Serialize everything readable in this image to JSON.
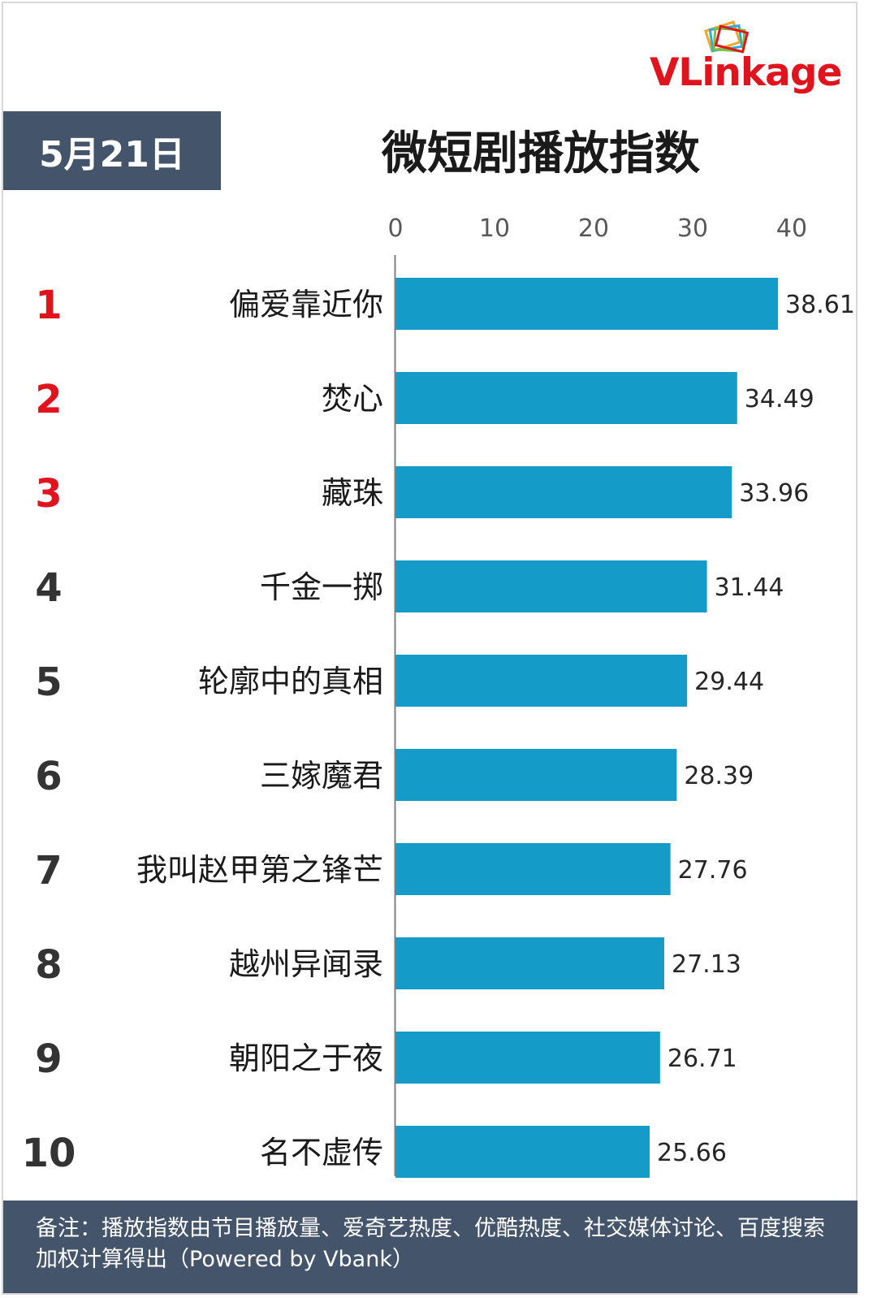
{
  "brand": {
    "logo_text_red": "VLink",
    "logo_text_dark": "age"
  },
  "header": {
    "date": "5月21日",
    "title": "微短剧播放指数"
  },
  "colors": {
    "bar": "#149bc8",
    "top3_rank": "#e1141e",
    "rank": "#333333",
    "header_bg": "#44546a",
    "axis": "#7f7f7f"
  },
  "chart_data": {
    "type": "bar",
    "orientation": "horizontal",
    "title": "微短剧播放指数",
    "xlim": [
      0,
      40
    ],
    "xticks": [
      0,
      10,
      20,
      30,
      40
    ],
    "grid": false,
    "ranks": [
      "1",
      "2",
      "3",
      "4",
      "5",
      "6",
      "7",
      "8",
      "9",
      "10"
    ],
    "categories": [
      "偏爱靠近你",
      "焚心",
      "藏珠",
      "千金一掷",
      "轮廓中的真相",
      "三嫁魔君",
      "我叫赵甲第之锋芒",
      "越州异闻录",
      "朝阳之于夜",
      "名不虚传"
    ],
    "values": [
      38.61,
      34.49,
      33.96,
      31.44,
      29.44,
      28.39,
      27.76,
      27.13,
      26.71,
      25.66
    ],
    "value_labels": [
      "38.61",
      "34.49",
      "33.96",
      "31.44",
      "29.44",
      "28.39",
      "27.76",
      "27.13",
      "26.71",
      "25.66"
    ]
  },
  "footer": {
    "note": "备注：播放指数由节目播放量、爱奇艺热度、优酷热度、社交媒体讨论、百度搜索加权计算得出（Powered by Vbank）"
  }
}
